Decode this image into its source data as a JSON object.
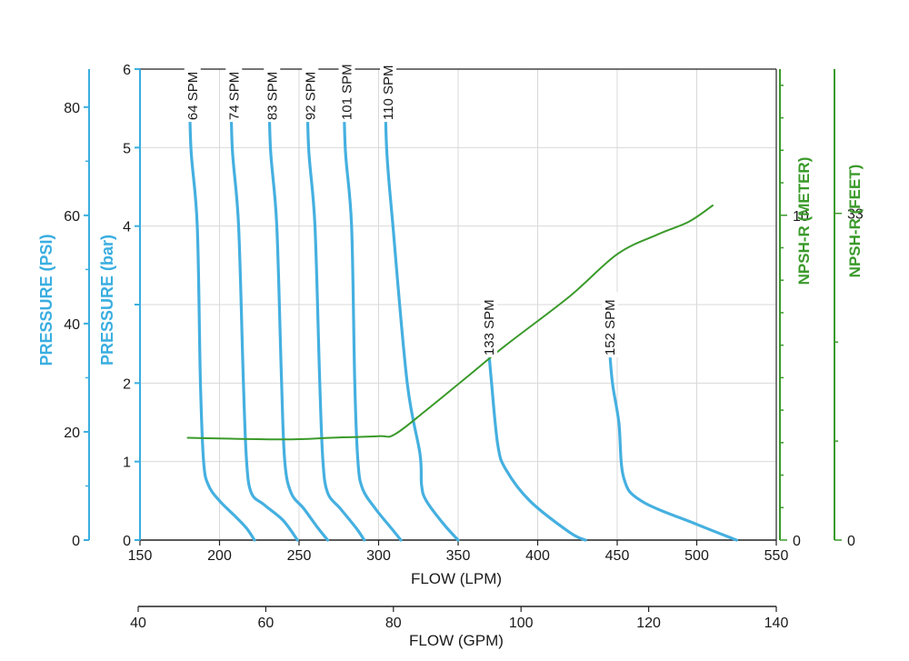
{
  "colors": {
    "pressure_axis": "#3aaee0",
    "curve": "#45b0e0",
    "npsh": "#3a9a2a",
    "grid": "#d9d9d9",
    "frame": "#222222"
  },
  "chart_data": {
    "type": "line",
    "xlabel": "FLOW (LPM)",
    "x2label": "FLOW (GPM)",
    "ylabel_bar": "PRESSURE (bar)",
    "ylabel_psi": "PRESSURE (PSI)",
    "ylabel_npsh_m": "NPSH-R (METER)",
    "ylabel_npsh_ft": "NPSH-R (FEET)",
    "xlim": [
      150,
      550
    ],
    "x2lim": [
      40,
      140
    ],
    "ylim": [
      0,
      6
    ],
    "x_ticks": [
      "150",
      "200",
      "250",
      "300",
      "350",
      "400",
      "450",
      "500",
      "550"
    ],
    "x2_ticks": [
      "40",
      "60",
      "80",
      "100",
      "120",
      "140"
    ],
    "y_bar_ticks": [
      "0",
      "1",
      "2",
      "3",
      "4",
      "5",
      "6"
    ],
    "y_bar_tick_display": [
      "0",
      "1",
      "2",
      "",
      "4",
      "5",
      "6"
    ],
    "y_psi_ticks": [
      "0",
      "20",
      "40",
      "60",
      "80"
    ],
    "y_psi_tick_display": [
      "0",
      "20",
      "40",
      "60",
      "80"
    ],
    "npsh_m_ticks": [
      "0",
      "10"
    ],
    "npsh_ft_ticks": [
      "0",
      "33"
    ],
    "grid": true,
    "series": [
      {
        "name": "64 SPM",
        "points": [
          [
            181,
            6
          ],
          [
            182,
            5.0
          ],
          [
            186,
            4.0
          ],
          [
            188,
            2.0
          ],
          [
            190,
            1.0
          ],
          [
            193,
            0.7
          ],
          [
            200,
            0.5
          ],
          [
            210,
            0.3
          ],
          [
            217,
            0.15
          ],
          [
            222,
            0
          ]
        ]
      },
      {
        "name": "74 SPM",
        "points": [
          [
            207,
            6
          ],
          [
            208,
            5.0
          ],
          [
            212,
            4.0
          ],
          [
            215,
            2.0
          ],
          [
            217,
            1.0
          ],
          [
            220,
            0.6
          ],
          [
            228,
            0.45
          ],
          [
            240,
            0.25
          ],
          [
            249,
            0
          ]
        ]
      },
      {
        "name": "83 SPM",
        "points": [
          [
            231,
            6
          ],
          [
            232,
            5.0
          ],
          [
            236,
            4.0
          ],
          [
            239,
            2.0
          ],
          [
            241,
            1.0
          ],
          [
            245,
            0.6
          ],
          [
            253,
            0.4
          ],
          [
            262,
            0.15
          ],
          [
            268,
            0
          ]
        ]
      },
      {
        "name": "92 SPM",
        "points": [
          [
            255,
            6
          ],
          [
            256,
            5.0
          ],
          [
            260,
            4.0
          ],
          [
            263,
            2.0
          ],
          [
            265,
            1.0
          ],
          [
            268,
            0.6
          ],
          [
            276,
            0.4
          ],
          [
            286,
            0.15
          ],
          [
            291,
            0
          ]
        ]
      },
      {
        "name": "101 SPM",
        "points": [
          [
            278,
            6
          ],
          [
            279,
            5.0
          ],
          [
            283,
            4.0
          ],
          [
            285,
            2.0
          ],
          [
            287,
            1.0
          ],
          [
            290,
            0.65
          ],
          [
            298,
            0.4
          ],
          [
            308,
            0.15
          ],
          [
            314,
            0
          ]
        ]
      },
      {
        "name": "110 SPM",
        "points": [
          [
            304,
            6
          ],
          [
            305,
            5.0
          ],
          [
            309,
            4.0
          ],
          [
            318,
            2.0
          ],
          [
            326,
            1.1
          ],
          [
            327,
            0.7
          ],
          [
            330,
            0.5
          ],
          [
            341,
            0.2
          ],
          [
            350,
            0
          ]
        ]
      },
      {
        "name": "133 SPM",
        "points": [
          [
            368,
            3.0
          ],
          [
            369,
            2.5
          ],
          [
            371,
            2.0
          ],
          [
            375,
            1.2
          ],
          [
            380,
            0.9
          ],
          [
            395,
            0.5
          ],
          [
            420,
            0.1
          ],
          [
            430,
            0
          ]
        ]
      },
      {
        "name": "152 SPM",
        "points": [
          [
            444,
            3.0
          ],
          [
            445,
            2.5
          ],
          [
            447,
            2.0
          ],
          [
            451,
            1.5
          ],
          [
            454,
            0.8
          ],
          [
            465,
            0.5
          ],
          [
            500,
            0.2
          ],
          [
            525,
            0
          ]
        ]
      },
      {
        "name": "NPSH-R",
        "axis": "npsh_m",
        "points": [
          [
            180,
            3.15
          ],
          [
            240,
            3.1
          ],
          [
            270,
            3.15
          ],
          [
            300,
            3.2
          ],
          [
            310,
            3.25
          ],
          [
            330,
            4.0
          ],
          [
            355,
            5.0
          ],
          [
            380,
            6.0
          ],
          [
            420,
            7.5
          ],
          [
            450,
            8.8
          ],
          [
            475,
            9.4
          ],
          [
            495,
            9.8
          ],
          [
            510,
            10.3
          ]
        ]
      }
    ],
    "npsh_m_lim": [
      0,
      14.5
    ]
  }
}
